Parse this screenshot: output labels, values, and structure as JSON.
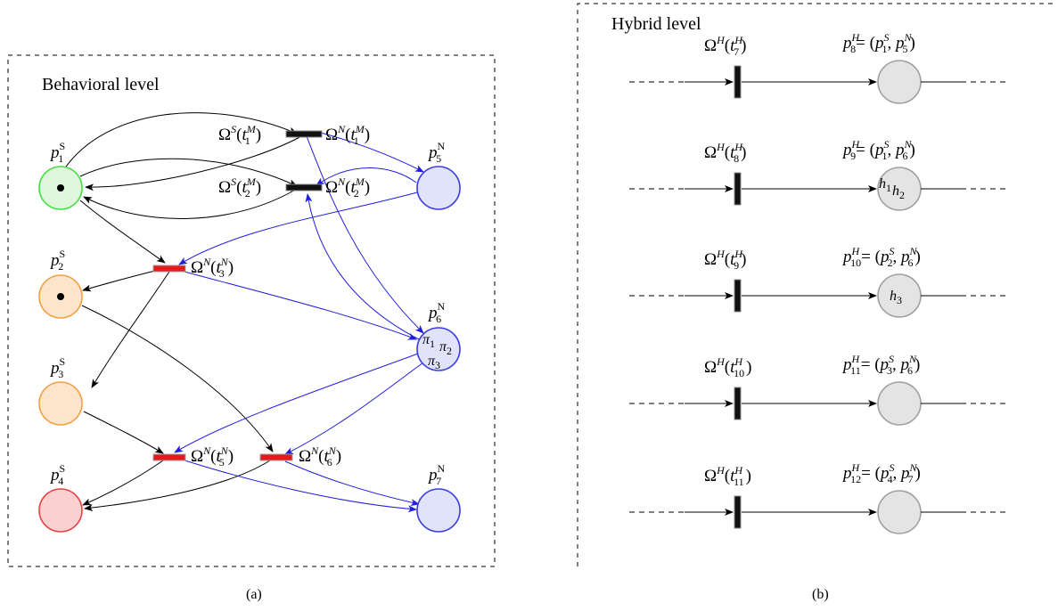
{
  "colors": {
    "green_fill": "#dff7dc",
    "green_stroke": "#44dd44",
    "orange_fill": "#fde5cc",
    "orange_stroke": "#f0a040",
    "red_fill": "#fbd0d0",
    "red_stroke": "#e84040",
    "blue_fill": "#e0e3fa",
    "blue_stroke": "#3a3ae0",
    "gray_fill": "#e4e4e4",
    "gray_stroke": "#a0a0a0",
    "edge_blue": "#1f1fdc",
    "trans_red": "#e8191a"
  },
  "panel_a": {
    "title": "Behavioral level",
    "caption": "(a)",
    "places": [
      {
        "id": "pS1",
        "name": "p",
        "sup": "S",
        "sub": "1",
        "color": "green",
        "token": true
      },
      {
        "id": "pS2",
        "name": "p",
        "sup": "S",
        "sub": "2",
        "color": "orange",
        "token": true
      },
      {
        "id": "pS3",
        "name": "p",
        "sup": "S",
        "sub": "3",
        "color": "orange",
        "token": false
      },
      {
        "id": "pS4",
        "name": "p",
        "sup": "S",
        "sub": "4",
        "color": "red",
        "token": false
      },
      {
        "id": "pN5",
        "name": "p",
        "sup": "N",
        "sub": "5",
        "color": "blue",
        "token": false
      },
      {
        "id": "pN6",
        "name": "p",
        "sup": "N",
        "sub": "6",
        "color": "blue",
        "token": false,
        "inner": [
          "π1",
          "π2",
          "π3"
        ]
      },
      {
        "id": "pN7",
        "name": "p",
        "sup": "N",
        "sub": "7",
        "color": "blue",
        "token": false
      }
    ],
    "transitions": [
      {
        "id": "t1M",
        "labels": [
          "Ω^S(t_1^M)",
          "Ω^N(t_1^M)"
        ],
        "kind": "black"
      },
      {
        "id": "t2M",
        "labels": [
          "Ω^S(t_2^M)",
          "Ω^N(t_2^M)"
        ],
        "kind": "black"
      },
      {
        "id": "t3N",
        "labels": [
          "Ω^N(t_3^N)"
        ],
        "kind": "red"
      },
      {
        "id": "t5N",
        "labels": [
          "Ω^N(t_5^N)"
        ],
        "kind": "red"
      },
      {
        "id": "t6N",
        "labels": [
          "Ω^N(t_6^N)"
        ],
        "kind": "red"
      }
    ]
  },
  "panel_b": {
    "title": "Hybrid level",
    "caption": "(b)",
    "rows": [
      {
        "trans": {
          "base": "Ω",
          "sup": "H",
          "arg": "t",
          "argsup": "H",
          "argsub": "7"
        },
        "place": {
          "sub": "8",
          "pair": [
            [
              "S",
              "1"
            ],
            [
              "N",
              "5"
            ]
          ]
        },
        "inner": []
      },
      {
        "trans": {
          "base": "Ω",
          "sup": "H",
          "arg": "t",
          "argsup": "H",
          "argsub": "8"
        },
        "place": {
          "sub": "9",
          "pair": [
            [
              "S",
              "1"
            ],
            [
              "N",
              "6"
            ]
          ]
        },
        "inner": [
          "h1",
          "h2"
        ]
      },
      {
        "trans": {
          "base": "Ω",
          "sup": "H",
          "arg": "t",
          "argsup": "H",
          "argsub": "9"
        },
        "place": {
          "sub": "10",
          "pair": [
            [
              "S",
              "2"
            ],
            [
              "N",
              "6"
            ]
          ]
        },
        "inner": [
          "h3"
        ]
      },
      {
        "trans": {
          "base": "Ω",
          "sup": "H",
          "arg": "t",
          "argsup": "H",
          "argsub": "10"
        },
        "place": {
          "sub": "11",
          "pair": [
            [
              "S",
              "3"
            ],
            [
              "N",
              "6"
            ]
          ]
        },
        "inner": []
      },
      {
        "trans": {
          "base": "Ω",
          "sup": "H",
          "arg": "t",
          "argsup": "H",
          "argsub": "11"
        },
        "place": {
          "sub": "12",
          "pair": [
            [
              "S",
              "4"
            ],
            [
              "N",
              "7"
            ]
          ]
        },
        "inner": []
      }
    ]
  }
}
